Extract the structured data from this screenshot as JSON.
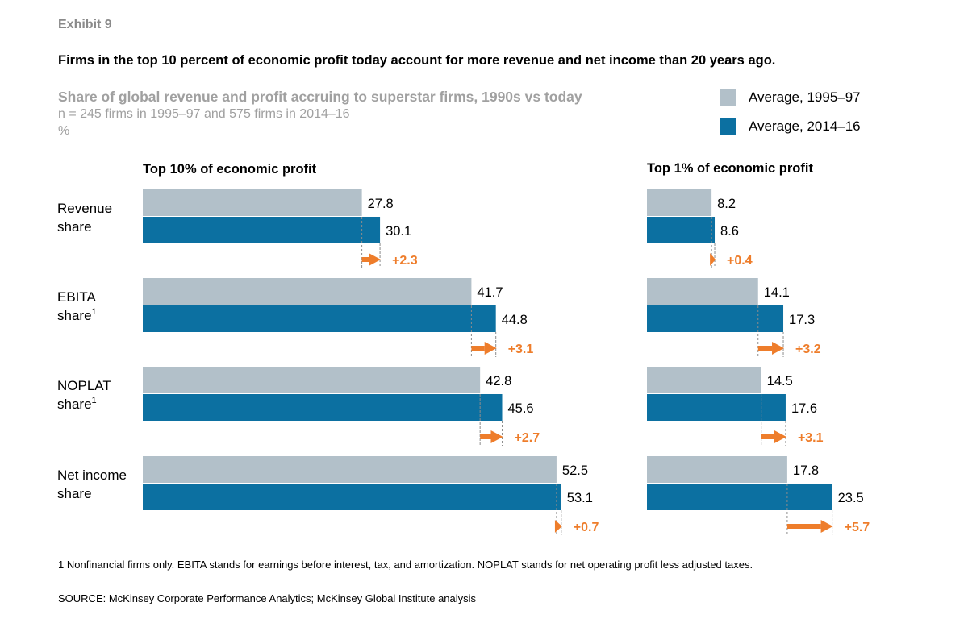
{
  "exhibit": "Exhibit 9",
  "headline": "Firms in the top 10 percent of economic profit today account for more revenue and net income than 20 years ago.",
  "subtitle": "Share of global revenue and profit accruing to superstar firms, 1990s vs today",
  "notes": [
    "n = 245 firms in 1995–97 and 575 firms in 2014–16",
    "%"
  ],
  "legend": [
    {
      "label": "Average, 1995–97",
      "color": "#b2c0c9"
    },
    {
      "label": "Average, 2014–16",
      "color": "#0c70a1"
    }
  ],
  "colors": {
    "change": "#ee7d2b",
    "dash": "#8c8c8c"
  },
  "chart_data": [
    {
      "type": "bar",
      "orientation": "horizontal",
      "title": "Top 10% of economic profit",
      "categories": [
        {
          "label": [
            "Revenue",
            "share"
          ],
          "sup": ""
        },
        {
          "label": [
            "EBITA",
            "share"
          ],
          "sup": "1"
        },
        {
          "label": [
            "NOPLAT",
            "share"
          ],
          "sup": "1"
        },
        {
          "label": [
            "Net income",
            "share"
          ],
          "sup": ""
        }
      ],
      "series": [
        {
          "name": "Average, 1995–97",
          "values": [
            27.8,
            41.7,
            42.8,
            52.5
          ]
        },
        {
          "name": "Average, 2014–16",
          "values": [
            30.1,
            44.8,
            45.6,
            53.1
          ]
        }
      ],
      "change_labels": [
        "+2.3",
        "+3.1",
        "+2.7",
        "+0.7"
      ],
      "value_labels": [
        [
          "27.8",
          "41.7",
          "42.8",
          "52.5"
        ],
        [
          "30.1",
          "44.8",
          "45.6",
          "53.1"
        ]
      ]
    },
    {
      "type": "bar",
      "orientation": "horizontal",
      "title": "Top 1% of economic profit",
      "categories": [
        {
          "label": [
            "Revenue",
            "share"
          ],
          "sup": ""
        },
        {
          "label": [
            "EBITA",
            "share"
          ],
          "sup": "1"
        },
        {
          "label": [
            "NOPLAT",
            "share"
          ],
          "sup": "1"
        },
        {
          "label": [
            "Net income",
            "share"
          ],
          "sup": ""
        }
      ],
      "series": [
        {
          "name": "Average, 1995–97",
          "values": [
            8.2,
            14.1,
            14.5,
            17.8
          ]
        },
        {
          "name": "Average, 2014–16",
          "values": [
            8.6,
            17.3,
            17.6,
            23.5
          ]
        }
      ],
      "change_labels": [
        "+0.4",
        "+3.2",
        "+3.1",
        "+5.7"
      ],
      "value_labels": [
        [
          "8.2",
          "14.1",
          "14.5",
          "17.8"
        ],
        [
          "8.6",
          "17.3",
          "17.6",
          "23.5"
        ]
      ]
    }
  ],
  "footnote": "1  Nonfinancial firms only. EBITA stands for earnings before interest, tax, and amortization. NOPLAT stands for net operating profit less adjusted taxes.",
  "source": "SOURCE:  McKinsey Corporate Performance Analytics; McKinsey Global Institute analysis"
}
